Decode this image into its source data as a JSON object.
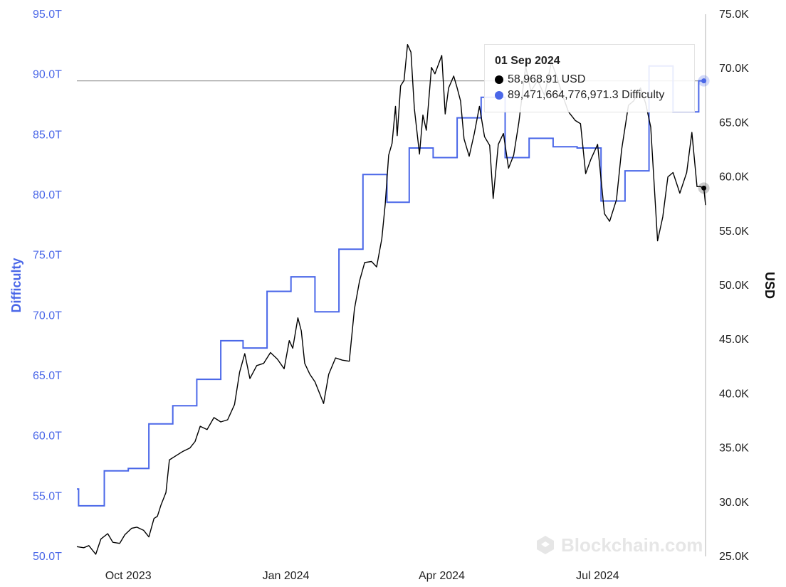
{
  "colors": {
    "price": "#000000",
    "difficulty": "#4a67e8",
    "crosshair": "#999999",
    "axis_line": "#b0b0b0"
  },
  "tooltip": {
    "date": "01 Sep 2024",
    "price_text": "58,968.91 USD",
    "difficulty_text": "89,471,664,776,971.3 Difficulty"
  },
  "watermark": {
    "text": "Blockchain.com",
    "icon": "blockchain-logo-icon"
  },
  "chart_data": {
    "type": "line",
    "title": "",
    "x_ticks": [
      "Oct 2023",
      "Jan 2024",
      "Apr 2024",
      "Jul 2024"
    ],
    "x_tick_dates": [
      "2023-10-01",
      "2024-01-01",
      "2024-04-01",
      "2024-07-01"
    ],
    "xlim": [
      "2023-09-01",
      "2024-09-02"
    ],
    "y_left": {
      "label": "Difficulty",
      "ylim": [
        50.0,
        95.0
      ],
      "ticks": [
        "50.0T",
        "55.0T",
        "60.0T",
        "65.0T",
        "70.0T",
        "75.0T",
        "80.0T",
        "85.0T",
        "90.0T",
        "95.0T"
      ],
      "tick_values": [
        50,
        55,
        60,
        65,
        70,
        75,
        80,
        85,
        90,
        95
      ],
      "unit": "T"
    },
    "y_right": {
      "label": "USD",
      "ylim": [
        25000,
        75000
      ],
      "ticks": [
        "25.0K",
        "30.0K",
        "35.0K",
        "40.0K",
        "45.0K",
        "50.0K",
        "55.0K",
        "60.0K",
        "65.0K",
        "70.0K",
        "75.0K"
      ],
      "tick_values": [
        25000,
        30000,
        35000,
        40000,
        45000,
        50000,
        55000,
        60000,
        65000,
        70000,
        75000
      ]
    },
    "legend": "none",
    "grid": false,
    "series": [
      {
        "name": "Difficulty",
        "axis": "left",
        "step": true,
        "x": [
          "2023-09-01",
          "2023-09-02",
          "2023-09-16",
          "2023-09-17",
          "2023-10-01",
          "2023-10-13",
          "2023-10-27",
          "2023-11-10",
          "2023-11-24",
          "2023-12-07",
          "2023-12-21",
          "2024-01-04",
          "2024-01-18",
          "2024-02-01",
          "2024-02-15",
          "2024-02-29",
          "2024-03-13",
          "2024-03-27",
          "2024-04-10",
          "2024-04-24",
          "2024-05-08",
          "2024-05-22",
          "2024-06-05",
          "2024-06-19",
          "2024-07-03",
          "2024-07-17",
          "2024-07-31",
          "2024-08-14",
          "2024-08-28",
          "2024-08-29",
          "2024-09-01"
        ],
        "values": [
          55.6,
          54.2,
          54.2,
          57.1,
          57.3,
          61.0,
          62.5,
          64.7,
          67.9,
          67.3,
          72.0,
          73.2,
          70.3,
          75.5,
          81.7,
          79.4,
          83.9,
          83.1,
          86.4,
          88.1,
          83.1,
          84.7,
          84.0,
          83.9,
          79.5,
          82.0,
          90.7,
          86.9,
          86.9,
          89.47,
          89.47
        ]
      },
      {
        "name": "USD",
        "axis": "right",
        "x": [
          "2023-09-01",
          "2023-09-05",
          "2023-09-08",
          "2023-09-12",
          "2023-09-15",
          "2023-09-19",
          "2023-09-22",
          "2023-09-26",
          "2023-09-29",
          "2023-10-03",
          "2023-10-06",
          "2023-10-10",
          "2023-10-13",
          "2023-10-16",
          "2023-10-18",
          "2023-10-20",
          "2023-10-23",
          "2023-10-25",
          "2023-10-28",
          "2023-11-02",
          "2023-11-06",
          "2023-11-09",
          "2023-11-12",
          "2023-11-16",
          "2023-11-20",
          "2023-11-24",
          "2023-11-28",
          "2023-12-02",
          "2023-12-05",
          "2023-12-08",
          "2023-12-11",
          "2023-12-15",
          "2023-12-19",
          "2023-12-23",
          "2023-12-27",
          "2023-12-31",
          "2024-01-03",
          "2024-01-05",
          "2024-01-08",
          "2024-01-10",
          "2024-01-12",
          "2024-01-15",
          "2024-01-18",
          "2024-01-21",
          "2024-01-23",
          "2024-01-26",
          "2024-01-30",
          "2024-02-03",
          "2024-02-07",
          "2024-02-10",
          "2024-02-13",
          "2024-02-16",
          "2024-02-20",
          "2024-02-23",
          "2024-02-26",
          "2024-02-28",
          "2024-03-01",
          "2024-03-03",
          "2024-03-05",
          "2024-03-06",
          "2024-03-08",
          "2024-03-10",
          "2024-03-12",
          "2024-03-14",
          "2024-03-16",
          "2024-03-19",
          "2024-03-21",
          "2024-03-23",
          "2024-03-26",
          "2024-03-28",
          "2024-04-01",
          "2024-04-03",
          "2024-04-05",
          "2024-04-08",
          "2024-04-10",
          "2024-04-12",
          "2024-04-14",
          "2024-04-17",
          "2024-04-20",
          "2024-04-23",
          "2024-04-26",
          "2024-04-29",
          "2024-05-01",
          "2024-05-04",
          "2024-05-07",
          "2024-05-10",
          "2024-05-13",
          "2024-05-16",
          "2024-05-20",
          "2024-05-23",
          "2024-05-27",
          "2024-05-31",
          "2024-06-04",
          "2024-06-07",
          "2024-06-11",
          "2024-06-14",
          "2024-06-18",
          "2024-06-21",
          "2024-06-24",
          "2024-06-27",
          "2024-07-01",
          "2024-07-05",
          "2024-07-08",
          "2024-07-12",
          "2024-07-15",
          "2024-07-19",
          "2024-07-22",
          "2024-07-26",
          "2024-07-29",
          "2024-08-01",
          "2024-08-05",
          "2024-08-08",
          "2024-08-11",
          "2024-08-14",
          "2024-08-18",
          "2024-08-22",
          "2024-08-25",
          "2024-08-28",
          "2024-08-30",
          "2024-09-01",
          "2024-09-02"
        ],
        "values": [
          25900,
          25800,
          26000,
          25200,
          26600,
          27100,
          26300,
          26200,
          27000,
          27600,
          27700,
          27400,
          26800,
          28500,
          28700,
          29700,
          30900,
          33900,
          34200,
          34700,
          35000,
          35600,
          37000,
          36700,
          37800,
          37400,
          37600,
          39000,
          42000,
          43700,
          41400,
          42600,
          42800,
          43800,
          43200,
          42300,
          44900,
          44200,
          47000,
          45800,
          42800,
          41800,
          41100,
          39900,
          39100,
          41800,
          43300,
          43100,
          43000,
          47800,
          50400,
          52100,
          52200,
          51700,
          54300,
          57500,
          62000,
          63100,
          66500,
          63800,
          68400,
          68900,
          72200,
          71500,
          66300,
          62100,
          65700,
          64300,
          70100,
          69500,
          71200,
          65800,
          68200,
          69300,
          68200,
          67000,
          63500,
          61900,
          64000,
          66500,
          63700,
          62900,
          58000,
          63000,
          64000,
          60800,
          62000,
          65000,
          70200,
          67900,
          68900,
          67500,
          70600,
          69300,
          67300,
          66000,
          65200,
          64900,
          60300,
          61600,
          63000,
          56600,
          55900,
          57900,
          62500,
          66600,
          67000,
          68200,
          66800,
          64600,
          54100,
          56300,
          60000,
          60400,
          58500,
          60400,
          64100,
          59100,
          59100,
          58968,
          57400
        ]
      }
    ],
    "annotations": [
      {
        "date": "2024-09-01",
        "price": "58,968.91 USD",
        "difficulty": "89,471,664,776,971.3 Difficulty"
      }
    ]
  }
}
